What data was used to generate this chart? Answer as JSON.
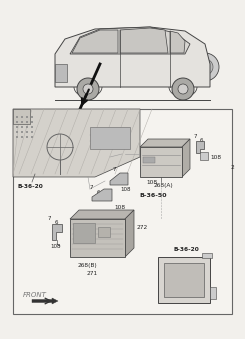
{
  "bg_color": "#f2f0ec",
  "box_bg": "#f5f3ef",
  "border_color": "#666666",
  "line_color": "#555555",
  "dash_color": "#888888",
  "text_color": "#222222",
  "gray_text": "#777777",
  "part_fill": "#d0cdc7",
  "part_dark": "#b0ada7",
  "part_side": "#a8a5a0",
  "dash_fill": "#c8c5be",
  "arrow_color": "#111111",
  "labels": {
    "b3620_left": "B-36-20",
    "b3650": "B-36-50",
    "b3620_right": "B-36-20",
    "front": "FRONT",
    "n2": "2",
    "n6": "6",
    "n7": "7",
    "n108": "108",
    "n268a": "268(A)",
    "n268b": "268(B)",
    "n271": "271",
    "n272": "272"
  },
  "car_color": "#e8e6e2",
  "car_line": "#444444"
}
